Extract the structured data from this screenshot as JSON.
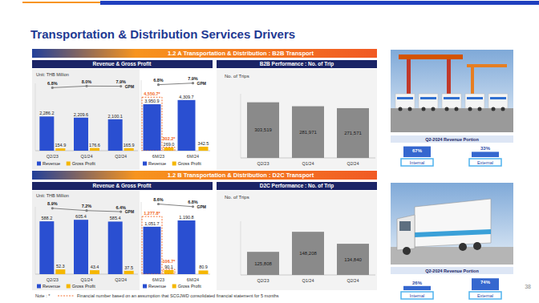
{
  "title": "Transportation & Distribution Services Drivers",
  "sections": [
    {
      "header": "1.2 A Transportation & Distribution : B2B Transport",
      "left_header": "Revenue & Gross Profit",
      "right_header": "B2B Performance : No. of Trip",
      "portion_title": "Q2-2024 Revenue Portion",
      "portion": [
        {
          "label": "Internal",
          "value": 67,
          "value_label": "67%"
        },
        {
          "label": "External",
          "value": 33,
          "value_label": "33%"
        }
      ]
    },
    {
      "header": "1.2 B Transportation & Distribution : D2C Transport",
      "left_header": "Revenue & Gross Profit",
      "right_header": "D2C Performance : No. of Trip",
      "portion_title": "Q2-2024 Revenue Portion",
      "portion": [
        {
          "label": "Internal",
          "value": 26,
          "value_label": "26%"
        },
        {
          "label": "External",
          "value": 74,
          "value_label": "74%"
        }
      ]
    }
  ],
  "chart_data": [
    {
      "type": "bar",
      "subtitle": "Unit: THB Million",
      "categories": [
        "Q2/23",
        "Q1/24",
        "Q2/24"
      ],
      "series": [
        {
          "name": "Revenue",
          "color": "#2a4fd1",
          "values": [
            2286.2,
            2209.6,
            2100.1
          ],
          "value_labels": [
            "2,286.2",
            "2,209.6",
            "2,100.1"
          ]
        },
        {
          "name": "Gross Profit",
          "color": "#f5b700",
          "values": [
            154.9,
            176.6,
            165.9
          ],
          "value_labels": [
            "154.9",
            "176.6",
            "165.9"
          ]
        },
        {
          "name": "GPM",
          "type": "line",
          "axis": "y2",
          "color": "#808080",
          "marker": "circle",
          "values": [
            6.8,
            8.0,
            7.9
          ],
          "value_labels": [
            "6.8%",
            "8.0%",
            "7.9%"
          ]
        }
      ],
      "ylim": [
        0,
        4500
      ],
      "yticks": [
        0
      ],
      "y2lim": [
        -40,
        10
      ],
      "data_labels": true,
      "tick_labels": "x",
      "legend": "bottom",
      "grid": false
    },
    {
      "type": "bar",
      "categories": [
        "6M/23",
        "6M/24"
      ],
      "series": [
        {
          "name": "Revenue",
          "color": "#2a4fd1",
          "values": [
            3950.9,
            4309.7
          ],
          "value_labels": [
            "3,950.9",
            "4,309.7"
          ],
          "pro_forma_values": [
            4550.7,
            null
          ],
          "pro_forma_labels": [
            "4,550.7*",
            null
          ]
        },
        {
          "name": "Gross Profit",
          "color": "#f5b700",
          "values": [
            269.0,
            342.5
          ],
          "value_labels": [
            "269.0",
            "342.5"
          ],
          "pro_forma_values": [
            302.2,
            null
          ],
          "pro_forma_labels": [
            "302.2*",
            null
          ]
        },
        {
          "name": "GPM",
          "type": "line",
          "axis": "y2",
          "color": "#808080",
          "marker": "circle",
          "values": [
            6.8,
            7.9
          ],
          "value_labels": [
            "6.8%",
            "7.9%"
          ]
        }
      ],
      "pro_forma": {
        "color": "#f26522",
        "line_style": "dashed"
      },
      "ylim": [
        0,
        6000
      ],
      "yticks": [
        0
      ],
      "y2lim": [
        -40,
        10
      ],
      "data_labels": true,
      "tick_labels": "x",
      "legend": "bottom",
      "grid": false
    },
    {
      "type": "bar",
      "ylabel": "No. of Trips",
      "categories": [
        "Q2/23",
        "Q1/24",
        "Q2/24"
      ],
      "values": [
        303519,
        281971,
        271571
      ],
      "value_labels": [
        "303,519",
        "281,971",
        "271,571"
      ],
      "color": "#8a8a8a",
      "ylim": [
        0,
        350000
      ],
      "yticks": [
        0
      ],
      "data_labels": true,
      "tick_labels": "x",
      "grid": false
    },
    {
      "type": "bar",
      "subtitle": "Unit: THB Million",
      "categories": [
        "Q2/23",
        "Q1/24",
        "Q2/24"
      ],
      "series": [
        {
          "name": "Revenue",
          "color": "#2a4fd1",
          "values": [
            588.2,
            605.4,
            585.4
          ],
          "value_labels": [
            "588.2",
            "605.4",
            "585.4"
          ]
        },
        {
          "name": "Gross Profit",
          "color": "#f5b700",
          "values": [
            52.3,
            43.4,
            37.5
          ],
          "value_labels": [
            "52.3",
            "43.4",
            "37.5"
          ]
        },
        {
          "name": "GPM",
          "type": "line",
          "axis": "y2",
          "color": "#808080",
          "marker": "circle",
          "values": [
            8.9,
            7.2,
            6.4
          ],
          "value_labels": [
            "8.9%",
            "7.2%",
            "6.4%"
          ]
        }
      ],
      "ylim": [
        0,
        750
      ],
      "yticks": [
        0
      ],
      "y2lim": [
        -40,
        10
      ],
      "data_labels": true,
      "tick_labels": "x",
      "legend": "bottom",
      "grid": false
    },
    {
      "type": "bar",
      "categories": [
        "6M/23",
        "6M/24"
      ],
      "series": [
        {
          "name": "Revenue",
          "color": "#2a4fd1",
          "values": [
            1051.7,
            1190.8
          ],
          "value_labels": [
            "1,051.7",
            "1,190.8"
          ],
          "pro_forma_values": [
            1277.8,
            null
          ],
          "pro_forma_labels": [
            "1,277.8*",
            null
          ]
        },
        {
          "name": "Gross Profit",
          "color": "#f5b700",
          "values": [
            90.1,
            80.9
          ],
          "value_labels": [
            "90.1",
            "80.9"
          ],
          "pro_forma_values": [
            106.7,
            null
          ],
          "pro_forma_labels": [
            "106.7*",
            null
          ]
        },
        {
          "name": "GPM",
          "type": "line",
          "axis": "y2",
          "color": "#808080",
          "marker": "circle",
          "values": [
            8.6,
            6.8
          ],
          "value_labels": [
            "8.6%",
            "6.8%"
          ]
        }
      ],
      "pro_forma": {
        "color": "#f26522",
        "line_style": "dashed"
      },
      "ylim": [
        0,
        1600
      ],
      "yticks": [
        0
      ],
      "y2lim": [
        -40,
        10
      ],
      "data_labels": true,
      "tick_labels": "x",
      "legend": "bottom",
      "grid": false
    },
    {
      "type": "bar",
      "ylabel": "No. of Trips",
      "categories": [
        "Q2/23",
        "Q1/24",
        "Q2/24"
      ],
      "values": [
        125808,
        148208,
        134840
      ],
      "value_labels": [
        "125,808",
        "148,208",
        "134,840"
      ],
      "color": "#8a8a8a",
      "ylim": [
        100000,
        160000
      ],
      "yticks": [
        100000
      ],
      "data_labels": true,
      "tick_labels": "x",
      "grid": false
    }
  ],
  "note": {
    "prefix": "Note : *",
    "text": "Financial number based on an assumption that SCGJWD consolidated financial statement for 5 months"
  },
  "page": 38
}
